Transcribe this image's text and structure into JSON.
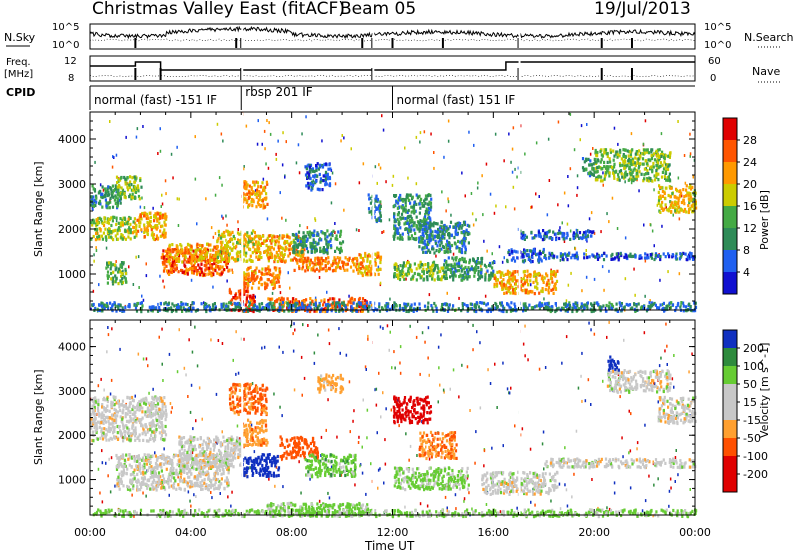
{
  "header": {
    "station": "Christmas Valley East (fitACF)",
    "beam": "Beam 05",
    "date": "19/Jul/2013"
  },
  "panels": {
    "nsky": {
      "label": "N.Sky",
      "right_label": "N.Search",
      "ticks_left": [
        "10^5",
        "10^0"
      ],
      "ticks_right": [
        "10^5",
        "10^0"
      ]
    },
    "freq": {
      "label_top": "Freq.",
      "label_unit": "[MHz]",
      "right_label": "Nave",
      "ticks_left": [
        "12",
        "8"
      ],
      "ticks_right": [
        "60",
        "0"
      ]
    },
    "cpid": {
      "label": "CPID",
      "segments": [
        {
          "text": "normal (fast) -151 IF",
          "start_h": 0.0,
          "end_h": 6.0
        },
        {
          "text": "rbsp 201 IF",
          "start_h": 6.0,
          "end_h": 12.0
        },
        {
          "text": "normal (fast) 151 IF",
          "start_h": 12.0,
          "end_h": 24.0
        }
      ]
    }
  },
  "x_axis": {
    "label": "Time UT",
    "ticks": [
      "00:00",
      "04:00",
      "08:00",
      "12:00",
      "16:00",
      "20:00",
      "00:00"
    ]
  },
  "colorbars": {
    "power": {
      "label": "Power [dB]",
      "ticks": [
        "28",
        "24",
        "20",
        "16",
        "12",
        "8",
        "4"
      ]
    },
    "velocity": {
      "label": "Velocity [m s^-1]",
      "ticks": [
        "200",
        "100",
        "50",
        "15",
        "-15",
        "-50",
        "-100",
        "-200"
      ]
    }
  },
  "chart_data": [
    {
      "type": "heatmap",
      "title": "Power",
      "xlabel": "",
      "ylabel": "Slant Range [km]",
      "x_ticks": [
        "00:00",
        "04:00",
        "08:00",
        "12:00",
        "16:00",
        "20:00",
        "00:00"
      ],
      "y_ticks": [
        1000,
        2000,
        3000,
        4000
      ],
      "xlim_h": [
        0,
        24
      ],
      "ylim": [
        200,
        4600
      ],
      "cbar_range": [
        0,
        30
      ],
      "blobs": [
        {
          "t0": 0.0,
          "t1": 1.8,
          "r0": 1800,
          "r1": 2300,
          "v": 16
        },
        {
          "t0": 0.0,
          "t1": 1.2,
          "r0": 2500,
          "r1": 3000,
          "v": 10
        },
        {
          "t0": 1.0,
          "t1": 2.0,
          "r0": 2700,
          "r1": 3200,
          "v": 14
        },
        {
          "t0": 0.6,
          "t1": 1.4,
          "r0": 800,
          "r1": 1300,
          "v": 12
        },
        {
          "t0": 1.8,
          "t1": 3.0,
          "r0": 1800,
          "r1": 2400,
          "v": 20
        },
        {
          "t0": 2.8,
          "t1": 5.5,
          "r0": 1000,
          "r1": 1600,
          "v": 24
        },
        {
          "t0": 3.0,
          "t1": 5.0,
          "r0": 1300,
          "r1": 1700,
          "v": 20
        },
        {
          "t0": 5.0,
          "t1": 6.5,
          "r0": 1300,
          "r1": 2000,
          "v": 18
        },
        {
          "t0": 5.5,
          "t1": 6.5,
          "r0": 200,
          "r1": 700,
          "v": 26
        },
        {
          "t0": 6.0,
          "t1": 7.0,
          "r0": 2500,
          "r1": 3100,
          "v": 20
        },
        {
          "t0": 6.0,
          "t1": 7.5,
          "r0": 700,
          "r1": 1200,
          "v": 22
        },
        {
          "t0": 6.5,
          "t1": 8.5,
          "r0": 1300,
          "r1": 1900,
          "v": 20
        },
        {
          "t0": 7.0,
          "t1": 11.0,
          "r0": 200,
          "r1": 500,
          "v": 24
        },
        {
          "t0": 8.0,
          "t1": 10.0,
          "r0": 1500,
          "r1": 2000,
          "v": 10
        },
        {
          "t0": 8.5,
          "t1": 9.5,
          "r0": 2900,
          "r1": 3500,
          "v": 6
        },
        {
          "t0": 8.0,
          "t1": 10.5,
          "r0": 1100,
          "r1": 1400,
          "v": 22
        },
        {
          "t0": 10.5,
          "t1": 11.5,
          "r0": 1000,
          "r1": 1500,
          "v": 20
        },
        {
          "t0": 11.0,
          "t1": 11.5,
          "r0": 2200,
          "r1": 2800,
          "v": 8
        },
        {
          "t0": 12.0,
          "t1": 13.5,
          "r0": 1800,
          "r1": 2800,
          "v": 10
        },
        {
          "t0": 12.0,
          "t1": 14.0,
          "r0": 900,
          "r1": 1300,
          "v": 14
        },
        {
          "t0": 13.0,
          "t1": 15.0,
          "r0": 1500,
          "r1": 2200,
          "v": 8
        },
        {
          "t0": 14.0,
          "t1": 16.0,
          "r0": 900,
          "r1": 1400,
          "v": 10
        },
        {
          "t0": 16.0,
          "t1": 18.5,
          "r0": 600,
          "r1": 1100,
          "v": 20
        },
        {
          "t0": 16.5,
          "t1": 18.0,
          "r0": 1300,
          "r1": 1600,
          "v": 6
        },
        {
          "t0": 17.0,
          "t1": 20.0,
          "r0": 1800,
          "r1": 2000,
          "v": 6
        },
        {
          "t0": 18.0,
          "t1": 24.0,
          "r0": 1350,
          "r1": 1500,
          "v": 6
        },
        {
          "t0": 19.5,
          "t1": 20.0,
          "r0": 3200,
          "r1": 3600,
          "v": 10
        },
        {
          "t0": 20.0,
          "t1": 23.0,
          "r0": 3100,
          "r1": 3800,
          "v": 14
        },
        {
          "t0": 22.5,
          "t1": 24.0,
          "r0": 2400,
          "r1": 3000,
          "v": 18
        },
        {
          "t0": 0.0,
          "t1": 24.0,
          "r0": 200,
          "r1": 400,
          "v": 8
        }
      ]
    },
    {
      "type": "heatmap",
      "title": "Velocity",
      "xlabel": "Time UT",
      "ylabel": "Slant Range [km]",
      "x_ticks": [
        "00:00",
        "04:00",
        "08:00",
        "12:00",
        "16:00",
        "20:00",
        "00:00"
      ],
      "y_ticks": [
        1000,
        2000,
        3000,
        4000
      ],
      "xlim_h": [
        0,
        24
      ],
      "ylim": [
        200,
        4600
      ],
      "cbar_range": [
        -250,
        250
      ],
      "blobs": [
        {
          "t0": 0.0,
          "t1": 3.0,
          "r0": 1900,
          "r1": 2900,
          "v": 0
        },
        {
          "t0": 1.0,
          "t1": 5.5,
          "r0": 800,
          "r1": 1600,
          "v": 0
        },
        {
          "t0": 3.5,
          "t1": 6.0,
          "r0": 1300,
          "r1": 2000,
          "v": 0
        },
        {
          "t0": 5.5,
          "t1": 7.0,
          "r0": 2500,
          "r1": 3200,
          "v": -80
        },
        {
          "t0": 6.0,
          "t1": 7.0,
          "r0": 1800,
          "r1": 2400,
          "v": -60
        },
        {
          "t0": 6.0,
          "t1": 7.5,
          "r0": 1100,
          "r1": 1600,
          "v": 180
        },
        {
          "t0": 7.5,
          "t1": 9.0,
          "r0": 1500,
          "r1": 2000,
          "v": -120
        },
        {
          "t0": 8.5,
          "t1": 10.5,
          "r0": 1100,
          "r1": 1600,
          "v": 40
        },
        {
          "t0": 7.0,
          "t1": 11.0,
          "r0": 200,
          "r1": 500,
          "v": 30
        },
        {
          "t0": 9.0,
          "t1": 10.0,
          "r0": 3000,
          "r1": 3400,
          "v": -40
        },
        {
          "t0": 12.0,
          "t1": 13.5,
          "r0": 2300,
          "r1": 2900,
          "v": -230
        },
        {
          "t0": 13.0,
          "t1": 14.5,
          "r0": 1500,
          "r1": 2100,
          "v": -70
        },
        {
          "t0": 12.0,
          "t1": 15.0,
          "r0": 800,
          "r1": 1300,
          "v": 30
        },
        {
          "t0": 15.5,
          "t1": 18.5,
          "r0": 700,
          "r1": 1200,
          "v": 0
        },
        {
          "t0": 18.0,
          "t1": 24.0,
          "r0": 1300,
          "r1": 1500,
          "v": 0
        },
        {
          "t0": 20.5,
          "t1": 23.0,
          "r0": 3000,
          "r1": 3500,
          "v": 0
        },
        {
          "t0": 22.5,
          "t1": 24.0,
          "r0": 2300,
          "r1": 2900,
          "v": 0
        },
        {
          "t0": 20.5,
          "t1": 21.0,
          "r0": 3500,
          "r1": 3800,
          "v": 200
        },
        {
          "t0": 0.0,
          "t1": 24.0,
          "r0": 200,
          "r1": 350,
          "v": 30
        }
      ]
    }
  ]
}
